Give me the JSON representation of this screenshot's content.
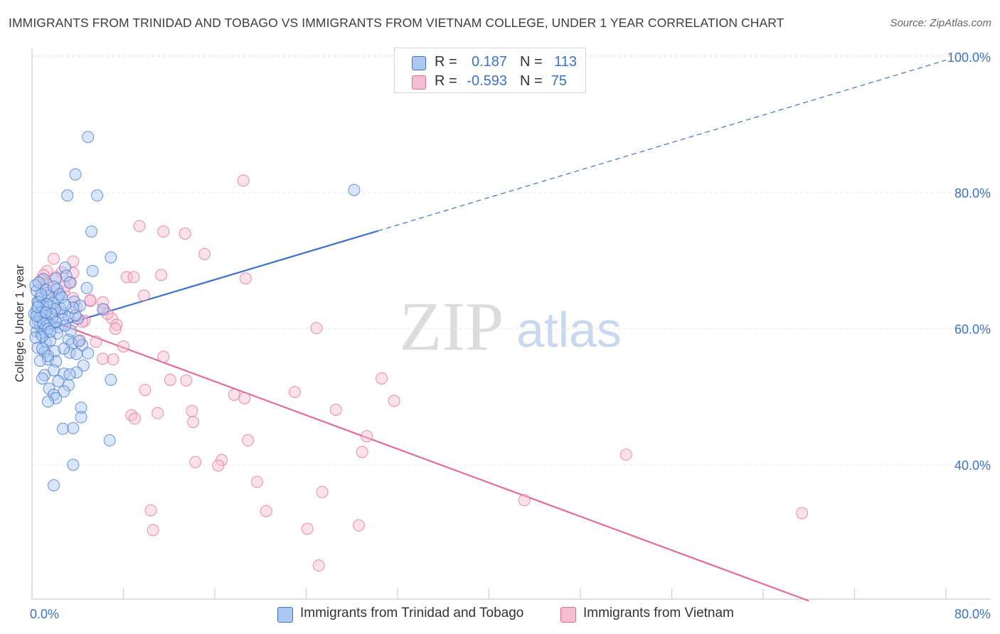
{
  "title": "IMMIGRANTS FROM TRINIDAD AND TOBAGO VS IMMIGRANTS FROM VIETNAM COLLEGE, UNDER 1 YEAR CORRELATION CHART",
  "source": "Source: ZipAtlas.com",
  "watermark": {
    "zip": "ZIP",
    "atlas": "atlas"
  },
  "legend": {
    "rows": [
      {
        "r_label": "R =",
        "r_value": "0.187",
        "n_label": "N =",
        "n_value": "113",
        "color": "#aac8f2"
      },
      {
        "r_label": "R =",
        "r_value": "-0.593",
        "n_label": "N =",
        "n_value": "75",
        "color": "#f7bdd0"
      }
    ]
  },
  "chart_data": {
    "type": "scatter",
    "title": "IMMIGRANTS FROM TRINIDAD AND TOBAGO VS IMMIGRANTS FROM VIETNAM COLLEGE, UNDER 1 YEAR CORRELATION CHART",
    "xlabel": "",
    "ylabel": "College, Under 1 year",
    "xlim": [
      0,
      80
    ],
    "ylim": [
      20,
      102
    ],
    "x_tick_labels": [
      {
        "value": 0,
        "label": "0.0%"
      },
      {
        "value": 80,
        "label": "80.0%"
      }
    ],
    "y_tick_labels": [
      {
        "value": 40,
        "label": "40.0%"
      },
      {
        "value": 60,
        "label": "60.0%"
      },
      {
        "value": 80,
        "label": "80.0%"
      },
      {
        "value": 100,
        "label": "100.0%"
      }
    ],
    "x_minor_ticks": [
      0,
      8,
      16,
      24,
      32,
      40,
      48,
      56,
      64,
      72,
      80
    ],
    "grid": true,
    "legend_placement": "top-center",
    "series": [
      {
        "name": "Immigrants from Trinidad and Tobago",
        "color": "#3d72c8",
        "fill": "#aac8f2",
        "R": 0.187,
        "N": 113,
        "trendline": {
          "x": [
            0.4,
            30.3
          ],
          "y": [
            59.4,
            74.4
          ],
          "dashed_extension": {
            "x": [
              30.3,
              80
            ],
            "y": [
              74.4,
              99.5
            ]
          }
        },
        "points": [
          [
            4.9,
            88.2
          ],
          [
            3.8,
            82.7
          ],
          [
            3.1,
            79.6
          ],
          [
            5.7,
            79.6
          ],
          [
            28.2,
            80.4
          ],
          [
            5.2,
            74.3
          ],
          [
            6.9,
            70.5
          ],
          [
            5.3,
            68.5
          ],
          [
            2.9,
            69.0
          ],
          [
            1.0,
            67.3
          ],
          [
            2.1,
            67.4
          ],
          [
            3.0,
            67.8
          ],
          [
            4.8,
            66.0
          ],
          [
            3.3,
            66.8
          ],
          [
            2.2,
            65.8
          ],
          [
            1.3,
            65.3
          ],
          [
            0.4,
            65.6
          ],
          [
            0.3,
            66.4
          ],
          [
            2.3,
            64.4
          ],
          [
            3.7,
            64.0
          ],
          [
            4.2,
            63.4
          ],
          [
            0.9,
            63.3
          ],
          [
            1.6,
            63.4
          ],
          [
            0.4,
            62.7
          ],
          [
            6.2,
            62.9
          ],
          [
            2.6,
            62.4
          ],
          [
            1.1,
            61.9
          ],
          [
            1.8,
            61.6
          ],
          [
            3.2,
            61.7
          ],
          [
            0.5,
            61.3
          ],
          [
            1.6,
            60.7
          ],
          [
            0.7,
            60.4
          ],
          [
            2.3,
            60.2
          ],
          [
            1.1,
            59.9
          ],
          [
            0.4,
            59.6
          ],
          [
            0.8,
            59.2
          ],
          [
            3.2,
            58.4
          ],
          [
            1.2,
            58.0
          ],
          [
            3.5,
            57.8
          ],
          [
            0.5,
            57.2
          ],
          [
            4.4,
            57.6
          ],
          [
            1.1,
            56.6
          ],
          [
            2.0,
            56.7
          ],
          [
            3.3,
            56.5
          ],
          [
            3.9,
            56.3
          ],
          [
            4.9,
            56.4
          ],
          [
            1.4,
            55.5
          ],
          [
            2.1,
            55.2
          ],
          [
            4.5,
            54.6
          ],
          [
            1.9,
            53.9
          ],
          [
            3.9,
            53.6
          ],
          [
            2.8,
            53.4
          ],
          [
            1.1,
            53.2
          ],
          [
            3.3,
            53.3
          ],
          [
            0.9,
            52.7
          ],
          [
            6.9,
            52.5
          ],
          [
            2.3,
            52.3
          ],
          [
            3.2,
            51.7
          ],
          [
            1.5,
            51.2
          ],
          [
            2.8,
            50.8
          ],
          [
            1.9,
            50.3
          ],
          [
            2.1,
            49.8
          ],
          [
            1.4,
            49.3
          ],
          [
            4.3,
            48.4
          ],
          [
            4.3,
            47.0
          ],
          [
            2.7,
            45.3
          ],
          [
            3.6,
            45.4
          ],
          [
            6.8,
            43.6
          ],
          [
            3.6,
            40.0
          ],
          [
            1.9,
            37.0
          ],
          [
            0.5,
            64.0
          ],
          [
            0.8,
            64.6
          ],
          [
            1.5,
            64.8
          ],
          [
            2.5,
            63.0
          ],
          [
            0.2,
            62.2
          ],
          [
            1.3,
            61.1
          ],
          [
            0.9,
            62.6
          ],
          [
            0.3,
            60.9
          ],
          [
            1.9,
            63.8
          ],
          [
            2.7,
            61.4
          ],
          [
            4.0,
            61.5
          ],
          [
            2.2,
            59.3
          ],
          [
            1.6,
            58.3
          ],
          [
            0.7,
            61.7
          ],
          [
            1.2,
            65.7
          ],
          [
            0.6,
            66.8
          ],
          [
            3.8,
            62.0
          ],
          [
            2.0,
            62.9
          ],
          [
            1.0,
            60.8
          ],
          [
            0.6,
            63.9
          ],
          [
            1.7,
            62.2
          ],
          [
            2.4,
            65.1
          ],
          [
            0.9,
            58.9
          ],
          [
            3.4,
            59.7
          ],
          [
            1.4,
            60.0
          ],
          [
            2.9,
            60.5
          ],
          [
            0.4,
            61.9
          ],
          [
            1.3,
            63.6
          ],
          [
            2.6,
            64.6
          ],
          [
            3.6,
            63.1
          ],
          [
            0.8,
            65.0
          ],
          [
            1.9,
            66.2
          ],
          [
            2.9,
            63.5
          ],
          [
            0.5,
            63.2
          ],
          [
            1.2,
            62.4
          ],
          [
            2.1,
            61.0
          ],
          [
            1.6,
            59.6
          ],
          [
            0.3,
            58.7
          ],
          [
            0.9,
            57.1
          ],
          [
            4.1,
            58.2
          ],
          [
            2.8,
            57.1
          ],
          [
            1.4,
            56.0
          ],
          [
            0.7,
            55.3
          ]
        ]
      },
      {
        "name": "Immigrants from Vietnam",
        "color": "#e06b9a",
        "fill": "#f7bdd0",
        "R": -0.593,
        "N": 75,
        "trendline": {
          "x": [
            0.3,
            68.0
          ],
          "y": [
            62.0,
            20.0
          ]
        },
        "points": [
          [
            18.5,
            81.8
          ],
          [
            9.4,
            75.1
          ],
          [
            11.5,
            74.3
          ],
          [
            13.4,
            74.0
          ],
          [
            15.1,
            71.0
          ],
          [
            1.9,
            70.3
          ],
          [
            3.6,
            69.9
          ],
          [
            1.3,
            68.5
          ],
          [
            2.6,
            68.3
          ],
          [
            3.6,
            68.2
          ],
          [
            1.0,
            67.9
          ],
          [
            2.1,
            67.6
          ],
          [
            11.3,
            67.9
          ],
          [
            8.3,
            67.6
          ],
          [
            8.9,
            67.6
          ],
          [
            18.7,
            67.4
          ],
          [
            3.4,
            66.8
          ],
          [
            1.3,
            66.6
          ],
          [
            2.8,
            65.4
          ],
          [
            3.6,
            64.5
          ],
          [
            6.2,
            63.9
          ],
          [
            5.1,
            64.1
          ],
          [
            6.3,
            62.8
          ],
          [
            7.0,
            61.5
          ],
          [
            4.6,
            61.2
          ],
          [
            3.5,
            60.8
          ],
          [
            7.4,
            60.6
          ],
          [
            7.3,
            60.0
          ],
          [
            24.9,
            60.1
          ],
          [
            4.2,
            58.3
          ],
          [
            5.6,
            58.1
          ],
          [
            8.0,
            57.4
          ],
          [
            11.5,
            55.9
          ],
          [
            6.2,
            55.6
          ],
          [
            7.1,
            55.5
          ],
          [
            30.6,
            52.7
          ],
          [
            12.1,
            52.5
          ],
          [
            13.5,
            52.4
          ],
          [
            9.9,
            51.0
          ],
          [
            17.7,
            50.3
          ],
          [
            18.6,
            49.8
          ],
          [
            23.0,
            50.7
          ],
          [
            31.7,
            49.4
          ],
          [
            26.6,
            48.1
          ],
          [
            14.0,
            47.9
          ],
          [
            8.7,
            47.3
          ],
          [
            11.0,
            47.6
          ],
          [
            9.0,
            46.8
          ],
          [
            14.1,
            46.3
          ],
          [
            29.3,
            44.2
          ],
          [
            18.9,
            43.6
          ],
          [
            28.9,
            41.9
          ],
          [
            52.0,
            41.5
          ],
          [
            16.6,
            40.7
          ],
          [
            14.3,
            40.4
          ],
          [
            16.3,
            39.9
          ],
          [
            19.7,
            37.5
          ],
          [
            25.4,
            36.0
          ],
          [
            43.1,
            34.8
          ],
          [
            10.4,
            33.3
          ],
          [
            20.5,
            33.2
          ],
          [
            67.4,
            32.9
          ],
          [
            10.6,
            30.4
          ],
          [
            24.1,
            30.6
          ],
          [
            28.6,
            31.1
          ],
          [
            25.1,
            25.2
          ],
          [
            5.1,
            64.2
          ],
          [
            3.9,
            63.2
          ],
          [
            2.2,
            62.6
          ],
          [
            4.4,
            61.0
          ],
          [
            1.7,
            65.6
          ],
          [
            6.6,
            62.2
          ],
          [
            2.9,
            66.2
          ],
          [
            9.8,
            64.9
          ],
          [
            0.8,
            67.2
          ]
        ]
      }
    ]
  },
  "bottom_legend": [
    {
      "label": "Immigrants from Trinidad and Tobago",
      "color": "#aac8f2",
      "border": "#3d72c8"
    },
    {
      "label": "Immigrants from Vietnam",
      "color": "#f7bdd0",
      "border": "#e06b9a"
    }
  ]
}
